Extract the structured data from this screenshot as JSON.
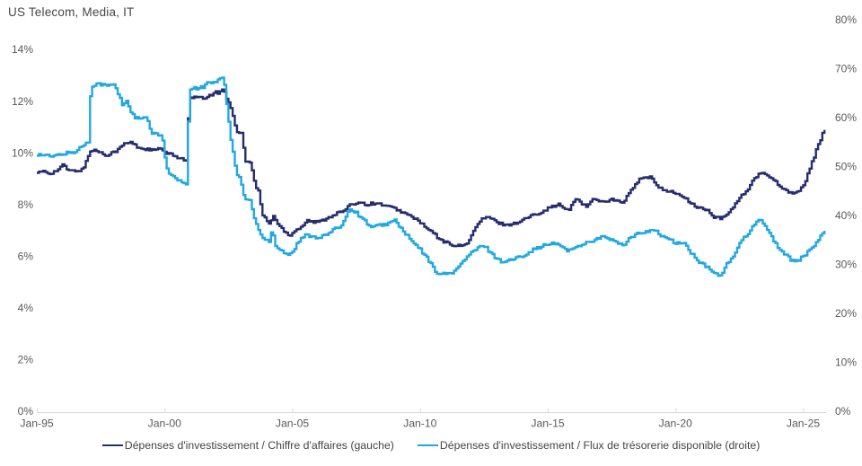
{
  "header": {
    "title": "US Telecom, Media, IT"
  },
  "chart_data": {
    "type": "line",
    "title": "US Telecom, Media, IT",
    "grid": false,
    "legend_position": "bottom",
    "background_color": "#ffffff",
    "axis_line_color": "#d8d8d8",
    "tick_label_color": "#595959",
    "x_axis": {
      "tick_labels": [
        "Jan-95",
        "Jan-00",
        "Jan-05",
        "Jan-10",
        "Jan-15",
        "Jan-20",
        "Jan-25"
      ],
      "tick_years": [
        1995,
        2000,
        2005,
        2010,
        2015,
        2020,
        2025
      ],
      "range_years": [
        1995,
        2025.9
      ]
    },
    "y_axis_left": {
      "tick_labels": [
        "0%",
        "2%",
        "4%",
        "6%",
        "8%",
        "10%",
        "12%",
        "14%"
      ],
      "tick_values": [
        0,
        2,
        4,
        6,
        8,
        10,
        12,
        14
      ],
      "range": [
        0,
        14
      ]
    },
    "y_axis_right": {
      "tick_labels": [
        "0%",
        "10%",
        "20%",
        "30%",
        "40%",
        "50%",
        "60%",
        "70%",
        "80%"
      ],
      "tick_values": [
        0,
        10,
        20,
        30,
        40,
        50,
        60,
        70,
        80
      ],
      "range": [
        0,
        80
      ]
    },
    "series": [
      {
        "name": "Dépenses d'investissement / Chiffre d'affaires (gauche)",
        "axis": "left",
        "color": "#252d6e",
        "points": [
          [
            1995.0,
            9.2
          ],
          [
            1995.25,
            9.3
          ],
          [
            1995.5,
            9.2
          ],
          [
            1995.75,
            9.3
          ],
          [
            1996.05,
            9.55
          ],
          [
            1996.2,
            9.3
          ],
          [
            1996.5,
            9.3
          ],
          [
            1996.8,
            9.35
          ],
          [
            1997.05,
            10.05
          ],
          [
            1997.3,
            10.1
          ],
          [
            1997.7,
            9.9
          ],
          [
            1997.9,
            10.0
          ],
          [
            1998.15,
            10.1
          ],
          [
            1998.4,
            10.35
          ],
          [
            1998.7,
            10.4
          ],
          [
            1998.95,
            10.2
          ],
          [
            1999.2,
            10.15
          ],
          [
            1999.5,
            10.1
          ],
          [
            1999.8,
            10.15
          ],
          [
            2000.05,
            10.0
          ],
          [
            2000.3,
            9.9
          ],
          [
            2000.6,
            9.8
          ],
          [
            2000.85,
            9.7
          ],
          [
            2000.95,
            12.1
          ],
          [
            2001.2,
            12.15
          ],
          [
            2001.5,
            12.1
          ],
          [
            2001.75,
            12.2
          ],
          [
            2001.95,
            12.35
          ],
          [
            2002.1,
            12.3
          ],
          [
            2002.3,
            12.5
          ],
          [
            2002.45,
            12.0
          ],
          [
            2002.6,
            11.75
          ],
          [
            2002.8,
            10.85
          ],
          [
            2003.0,
            10.75
          ],
          [
            2003.15,
            9.7
          ],
          [
            2003.35,
            9.6
          ],
          [
            2003.55,
            8.7
          ],
          [
            2003.7,
            8.45
          ],
          [
            2003.8,
            7.6
          ],
          [
            2003.95,
            7.45
          ],
          [
            2004.1,
            7.25
          ],
          [
            2004.25,
            7.55
          ],
          [
            2004.45,
            7.2
          ],
          [
            2004.65,
            7.0
          ],
          [
            2004.9,
            6.8
          ],
          [
            2005.1,
            7.0
          ],
          [
            2005.35,
            7.15
          ],
          [
            2005.6,
            7.4
          ],
          [
            2005.8,
            7.3
          ],
          [
            2006.1,
            7.35
          ],
          [
            2006.4,
            7.5
          ],
          [
            2006.7,
            7.65
          ],
          [
            2007.0,
            7.75
          ],
          [
            2007.3,
            8.0
          ],
          [
            2007.6,
            8.1
          ],
          [
            2007.9,
            8.0
          ],
          [
            2008.2,
            8.05
          ],
          [
            2008.5,
            8.0
          ],
          [
            2008.8,
            7.9
          ],
          [
            2009.1,
            7.8
          ],
          [
            2009.5,
            7.6
          ],
          [
            2009.9,
            7.4
          ],
          [
            2010.2,
            7.1
          ],
          [
            2010.5,
            6.9
          ],
          [
            2010.8,
            6.6
          ],
          [
            2011.1,
            6.5
          ],
          [
            2011.4,
            6.4
          ],
          [
            2011.7,
            6.4
          ],
          [
            2011.9,
            6.6
          ],
          [
            2012.1,
            7.0
          ],
          [
            2012.4,
            7.45
          ],
          [
            2012.7,
            7.5
          ],
          [
            2013.0,
            7.3
          ],
          [
            2013.4,
            7.2
          ],
          [
            2013.8,
            7.3
          ],
          [
            2014.2,
            7.5
          ],
          [
            2014.7,
            7.7
          ],
          [
            2015.1,
            7.9
          ],
          [
            2015.4,
            8.0
          ],
          [
            2015.8,
            7.75
          ],
          [
            2016.1,
            8.25
          ],
          [
            2016.5,
            7.9
          ],
          [
            2016.8,
            8.25
          ],
          [
            2017.1,
            8.1
          ],
          [
            2017.5,
            8.2
          ],
          [
            2017.9,
            8.05
          ],
          [
            2018.3,
            8.6
          ],
          [
            2018.6,
            9.0
          ],
          [
            2019.0,
            9.05
          ],
          [
            2019.3,
            8.7
          ],
          [
            2019.7,
            8.5
          ],
          [
            2020.0,
            8.45
          ],
          [
            2020.4,
            8.2
          ],
          [
            2020.8,
            7.9
          ],
          [
            2021.2,
            7.8
          ],
          [
            2021.5,
            7.5
          ],
          [
            2021.8,
            7.45
          ],
          [
            2022.1,
            7.7
          ],
          [
            2022.4,
            8.15
          ],
          [
            2022.8,
            8.55
          ],
          [
            2023.0,
            8.9
          ],
          [
            2023.3,
            9.2
          ],
          [
            2023.6,
            9.15
          ],
          [
            2023.9,
            8.9
          ],
          [
            2024.2,
            8.6
          ],
          [
            2024.5,
            8.45
          ],
          [
            2024.8,
            8.5
          ],
          [
            2025.0,
            8.7
          ],
          [
            2025.15,
            9.15
          ],
          [
            2025.3,
            9.55
          ],
          [
            2025.45,
            9.95
          ],
          [
            2025.55,
            10.25
          ],
          [
            2025.7,
            10.6
          ],
          [
            2025.8,
            10.85
          ]
        ]
      },
      {
        "name": "Dépenses d'investissement / Flux de trésorerie disponible (droite)",
        "axis": "right",
        "color": "#21a8e1",
        "points": [
          [
            1995.0,
            52.5
          ],
          [
            1995.3,
            52.3
          ],
          [
            1995.6,
            52.0
          ],
          [
            1995.9,
            52.5
          ],
          [
            1996.2,
            52.8
          ],
          [
            1996.5,
            53.0
          ],
          [
            1996.75,
            54.2
          ],
          [
            1997.0,
            55.0
          ],
          [
            1997.1,
            66.5
          ],
          [
            1997.4,
            67.0
          ],
          [
            1997.7,
            66.5
          ],
          [
            1998.0,
            66.8
          ],
          [
            1998.2,
            64.5
          ],
          [
            1998.35,
            62.5
          ],
          [
            1998.5,
            63.5
          ],
          [
            1998.65,
            61.5
          ],
          [
            1998.8,
            60.0
          ],
          [
            1999.0,
            59.8
          ],
          [
            1999.3,
            59.9
          ],
          [
            1999.45,
            57.0
          ],
          [
            1999.65,
            56.5
          ],
          [
            1999.9,
            56.3
          ],
          [
            2000.05,
            49.8
          ],
          [
            2000.2,
            48.5
          ],
          [
            2000.4,
            47.5
          ],
          [
            2000.6,
            47.0
          ],
          [
            2000.85,
            46.0
          ],
          [
            2000.95,
            65.9
          ],
          [
            2001.2,
            66.0
          ],
          [
            2001.5,
            66.2
          ],
          [
            2001.7,
            67.5
          ],
          [
            2001.9,
            67.0
          ],
          [
            2002.1,
            68.0
          ],
          [
            2002.3,
            68.5
          ],
          [
            2002.45,
            61.0
          ],
          [
            2002.6,
            55.0
          ],
          [
            2002.7,
            52.0
          ],
          [
            2002.8,
            48.2
          ],
          [
            2002.95,
            47.8
          ],
          [
            2003.1,
            43.5
          ],
          [
            2003.35,
            43.0
          ],
          [
            2003.5,
            39.5
          ],
          [
            2003.7,
            36.5
          ],
          [
            2003.9,
            35.0
          ],
          [
            2004.1,
            34.8
          ],
          [
            2004.2,
            37.5
          ],
          [
            2004.35,
            33.5
          ],
          [
            2004.55,
            33.0
          ],
          [
            2004.8,
            32.0
          ],
          [
            2005.0,
            32.5
          ],
          [
            2005.2,
            34.5
          ],
          [
            2005.5,
            36.0
          ],
          [
            2005.75,
            35.8
          ],
          [
            2006.0,
            35.5
          ],
          [
            2006.3,
            36.0
          ],
          [
            2006.6,
            37.0
          ],
          [
            2006.9,
            38.0
          ],
          [
            2007.25,
            41.5
          ],
          [
            2007.5,
            40.5
          ],
          [
            2007.8,
            39.0
          ],
          [
            2008.1,
            37.5
          ],
          [
            2008.4,
            38.0
          ],
          [
            2008.7,
            38.3
          ],
          [
            2009.0,
            39.0
          ],
          [
            2009.3,
            37.0
          ],
          [
            2009.7,
            34.5
          ],
          [
            2010.0,
            33.0
          ],
          [
            2010.3,
            31.0
          ],
          [
            2010.6,
            28.5
          ],
          [
            2010.9,
            28.0
          ],
          [
            2011.2,
            28.2
          ],
          [
            2011.5,
            29.5
          ],
          [
            2011.9,
            32.0
          ],
          [
            2012.3,
            33.5
          ],
          [
            2012.5,
            33.8
          ],
          [
            2012.9,
            31.6
          ],
          [
            2013.2,
            30.5
          ],
          [
            2013.6,
            31.0
          ],
          [
            2014.0,
            31.8
          ],
          [
            2014.4,
            33.0
          ],
          [
            2014.8,
            33.8
          ],
          [
            2015.2,
            34.3
          ],
          [
            2015.5,
            33.8
          ],
          [
            2015.8,
            32.8
          ],
          [
            2016.1,
            33.5
          ],
          [
            2016.4,
            34.3
          ],
          [
            2016.8,
            35.0
          ],
          [
            2017.1,
            35.6
          ],
          [
            2017.4,
            35.3
          ],
          [
            2017.7,
            34.3
          ],
          [
            2018.0,
            33.9
          ],
          [
            2018.15,
            35.2
          ],
          [
            2018.5,
            36.2
          ],
          [
            2018.85,
            36.8
          ],
          [
            2019.1,
            37.2
          ],
          [
            2019.4,
            36.0
          ],
          [
            2019.7,
            35.2
          ],
          [
            2020.0,
            34.3
          ],
          [
            2020.3,
            34.5
          ],
          [
            2020.6,
            32.3
          ],
          [
            2020.9,
            30.5
          ],
          [
            2021.2,
            29.5
          ],
          [
            2021.5,
            28.2
          ],
          [
            2021.75,
            27.8
          ],
          [
            2022.0,
            30.0
          ],
          [
            2022.3,
            32.1
          ],
          [
            2022.6,
            35.2
          ],
          [
            2022.85,
            36.0
          ],
          [
            2023.0,
            38.0
          ],
          [
            2023.25,
            39.2
          ],
          [
            2023.45,
            38.5
          ],
          [
            2023.65,
            36.5
          ],
          [
            2023.95,
            33.9
          ],
          [
            2024.25,
            32.1
          ],
          [
            2024.5,
            31.0
          ],
          [
            2024.75,
            30.7
          ],
          [
            2025.05,
            31.9
          ],
          [
            2025.35,
            33.4
          ],
          [
            2025.55,
            34.9
          ],
          [
            2025.8,
            36.8
          ]
        ]
      }
    ]
  },
  "legend": {
    "items": [
      {
        "label": "Dépenses d'investissement / Chiffre d'affaires (gauche)"
      },
      {
        "label": "Dépenses d'investissement / Flux de trésorerie disponible (droite)"
      }
    ]
  }
}
